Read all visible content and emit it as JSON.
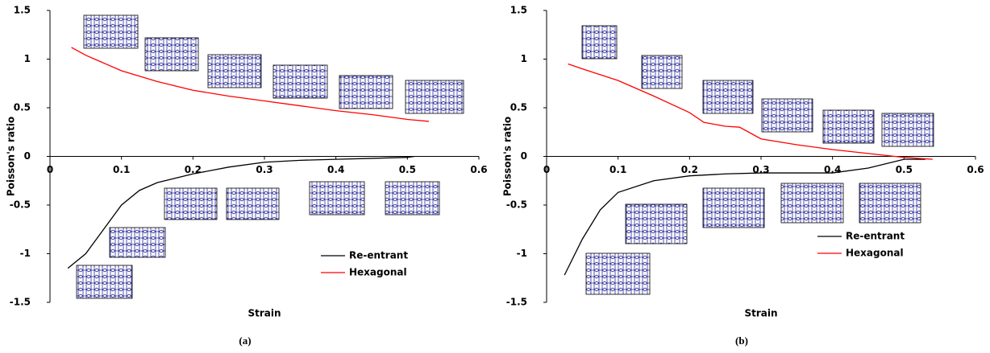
{
  "chart_data": [
    {
      "type": "line",
      "caption": "(a)",
      "xlabel": "Strain",
      "ylabel": "Poisson's ratio",
      "xlim": [
        0,
        0.6
      ],
      "ylim": [
        -1.5,
        1.5
      ],
      "xticks": [
        0,
        0.1,
        0.2,
        0.3,
        0.4,
        0.5,
        0.6
      ],
      "yticks": [
        1.5,
        1,
        0.5,
        0,
        -0.5,
        -1,
        -1.5
      ],
      "legend": "lower right",
      "series": [
        {
          "name": "Re-entrant",
          "color": "#000000",
          "x": [
            0.025,
            0.05,
            0.075,
            0.1,
            0.125,
            0.15,
            0.2,
            0.25,
            0.3,
            0.35,
            0.4,
            0.45,
            0.5,
            0.51
          ],
          "values": [
            -1.15,
            -1.0,
            -0.75,
            -0.5,
            -0.35,
            -0.27,
            -0.18,
            -0.11,
            -0.06,
            -0.04,
            -0.03,
            -0.02,
            -0.01,
            0.0
          ]
        },
        {
          "name": "Hexagonal",
          "color": "#ff0000",
          "x": [
            0.03,
            0.05,
            0.1,
            0.15,
            0.2,
            0.25,
            0.3,
            0.35,
            0.4,
            0.45,
            0.5,
            0.53
          ],
          "values": [
            1.12,
            1.04,
            0.88,
            0.77,
            0.68,
            0.62,
            0.57,
            0.52,
            0.47,
            0.43,
            0.38,
            0.36
          ]
        }
      ]
    },
    {
      "type": "line",
      "caption": "(b)",
      "xlabel": "Strain",
      "ylabel": "Poisson's ratio",
      "xlim": [
        0,
        0.6
      ],
      "ylim": [
        -1.5,
        1.5
      ],
      "xticks": [
        0,
        0.1,
        0.2,
        0.3,
        0.4,
        0.5,
        0.6
      ],
      "yticks": [
        1.5,
        1,
        0.5,
        0,
        -0.5,
        -1,
        -1.5
      ],
      "legend": "lower right",
      "series": [
        {
          "name": "Re-entrant",
          "color": "#000000",
          "x": [
            0.025,
            0.05,
            0.075,
            0.1,
            0.15,
            0.2,
            0.25,
            0.3,
            0.35,
            0.4,
            0.45,
            0.5,
            0.53
          ],
          "values": [
            -1.22,
            -0.85,
            -0.55,
            -0.37,
            -0.25,
            -0.2,
            -0.18,
            -0.17,
            -0.17,
            -0.17,
            -0.12,
            -0.03,
            -0.03
          ]
        },
        {
          "name": "Hexagonal",
          "color": "#ff0000",
          "x": [
            0.03,
            0.05,
            0.1,
            0.15,
            0.2,
            0.22,
            0.25,
            0.27,
            0.29,
            0.3,
            0.35,
            0.4,
            0.45,
            0.5,
            0.54
          ],
          "values": [
            0.95,
            0.9,
            0.78,
            0.62,
            0.45,
            0.35,
            0.31,
            0.3,
            0.22,
            0.18,
            0.12,
            0.07,
            0.03,
            -0.01,
            -0.03
          ]
        }
      ]
    }
  ]
}
